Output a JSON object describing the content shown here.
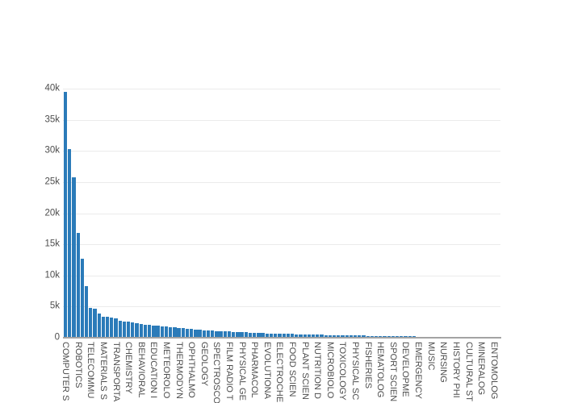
{
  "chart_data": {
    "type": "bar",
    "title": "",
    "xlabel": "",
    "ylabel": "",
    "ylim": [
      0,
      40000
    ],
    "grid": "horizontal-only",
    "legend": "none",
    "bar_color": "#2b7bb9",
    "grid_color": "#ebebeb",
    "axis_line_color": "#a3a3a3",
    "tick_label_color": "#4d4d4d",
    "ytick_labels": [
      "0",
      "5k",
      "10k",
      "15k",
      "20k",
      "25k",
      "30k",
      "35k",
      "40k"
    ],
    "ytick_values": [
      0,
      5000,
      10000,
      15000,
      20000,
      25000,
      30000,
      35000,
      40000
    ],
    "x_tick_labels": [
      "COMPUTER S",
      "ROBOTICS",
      "TELECOMMU",
      "MATERIALS S",
      "TRANSPORTA",
      "CHEMISTRY",
      "BEHAVIORAL",
      "EDUCATION I",
      "METEOROLO",
      "THERMODYN",
      "OPHTHALMO",
      "GEOLOGY",
      "SPECTROSCO",
      "FILM RADIO T",
      "PHYSICAL GE",
      "PHARMACOL",
      "EVOLUTIONA",
      "ELECTROCHE",
      "FOOD SCIEN",
      "PLANT SCIEN",
      "NUTRITION D",
      "MICROBIOLO",
      "TOXICOLOGY",
      "PHYSICAL SC",
      "FISHERIES",
      "HEMATOLOG",
      "SPORT SCIEN",
      "DEVELOPME",
      "EMERGENCY",
      "MUSIC",
      "NURSING",
      "HISTORY PHI",
      "CULTURAL ST",
      "MINERALOG",
      "ENTOMOLOG"
    ],
    "label_every_n_bars": 3,
    "values": [
      39300,
      30200,
      25600,
      16700,
      12600,
      8200,
      4650,
      4500,
      3750,
      3300,
      3200,
      3100,
      3000,
      2600,
      2500,
      2400,
      2300,
      2200,
      2100,
      2000,
      1900,
      1850,
      1800,
      1700,
      1650,
      1600,
      1500,
      1450,
      1400,
      1330,
      1270,
      1220,
      1160,
      1100,
      1050,
      1000,
      950,
      920,
      880,
      850,
      820,
      790,
      760,
      730,
      700,
      670,
      640,
      610,
      580,
      560,
      540,
      520,
      500,
      480,
      460,
      440,
      420,
      400,
      380,
      370,
      350,
      340,
      320,
      310,
      300,
      280,
      270,
      260,
      240,
      230,
      220,
      200,
      190,
      180,
      160,
      150,
      140,
      120,
      110,
      100,
      90,
      80,
      75,
      70,
      65,
      60,
      55,
      50,
      45,
      40,
      38,
      35,
      32,
      30,
      28,
      25,
      22,
      20,
      18,
      15,
      12,
      10,
      8,
      6
    ]
  }
}
